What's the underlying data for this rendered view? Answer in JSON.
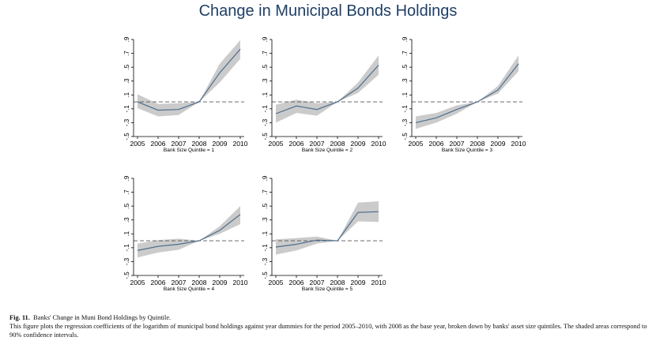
{
  "title": "Change in Municipal Bonds Holdings",
  "caption": {
    "label": "Fig. 11.",
    "title": "Banks' Change in Muni Bond Holdings by Quintile.",
    "text": "This figure plots the regression coefficients of the logarithm of municipal bond holdings against year dummies for the period 2005–2010, with 2008 as the base year, broken down by banks' asset size quintiles. The shaded areas correspond to 90% confidence intervals."
  },
  "colors": {
    "line": "#4e6e8e",
    "band": "#cbcbcb",
    "refline": "#555555"
  },
  "chart_data": [
    {
      "type": "line",
      "xlabel": "Bank Size Quintile = 1",
      "x": [
        2005,
        2006,
        2007,
        2008,
        2009,
        2010
      ],
      "ylim": [
        -0.5,
        0.9
      ],
      "yticks": [
        -0.5,
        -0.3,
        -0.1,
        0.1,
        0.3,
        0.5,
        0.7,
        0.9
      ],
      "ytick_labels": [
        "-.5",
        "-.3",
        "-.1",
        ".1",
        ".3",
        ".5",
        ".7",
        ".9"
      ],
      "reference_line": 0,
      "series": [
        {
          "values": [
            0.0,
            -0.12,
            -0.11,
            0.0,
            0.42,
            0.76
          ],
          "lower": [
            -0.09,
            -0.21,
            -0.19,
            0.0,
            0.28,
            0.62
          ],
          "upper": [
            0.11,
            -0.03,
            -0.02,
            0.0,
            0.55,
            0.89
          ]
        }
      ]
    },
    {
      "type": "line",
      "xlabel": "Bank Size Quintile = 2",
      "x": [
        2005,
        2006,
        2007,
        2008,
        2009,
        2010
      ],
      "ylim": [
        -0.5,
        0.9
      ],
      "yticks": [
        -0.5,
        -0.3,
        -0.1,
        0.1,
        0.3,
        0.5,
        0.7,
        0.9
      ],
      "ytick_labels": [
        "-.5",
        "-.3",
        "-.1",
        ".1",
        ".3",
        ".5",
        ".7",
        ".9"
      ],
      "reference_line": 0,
      "series": [
        {
          "values": [
            -0.17,
            -0.06,
            -0.11,
            0.0,
            0.2,
            0.53
          ],
          "lower": [
            -0.3,
            -0.16,
            -0.2,
            0.0,
            0.13,
            0.39
          ],
          "upper": [
            -0.04,
            0.03,
            -0.02,
            0.0,
            0.28,
            0.67
          ]
        }
      ]
    },
    {
      "type": "line",
      "xlabel": "Bank Size Quintile = 3",
      "x": [
        2005,
        2006,
        2007,
        2008,
        2009,
        2010
      ],
      "ylim": [
        -0.5,
        0.9
      ],
      "yticks": [
        -0.5,
        -0.3,
        -0.1,
        0.1,
        0.3,
        0.5,
        0.7,
        0.9
      ],
      "ytick_labels": [
        "-.5",
        "-.3",
        "-.1",
        ".1",
        ".3",
        ".5",
        ".7",
        ".9"
      ],
      "reference_line": 0,
      "series": [
        {
          "values": [
            -0.3,
            -0.23,
            -0.11,
            0.0,
            0.17,
            0.55
          ],
          "lower": [
            -0.39,
            -0.3,
            -0.17,
            0.0,
            0.12,
            0.44
          ],
          "upper": [
            -0.21,
            -0.16,
            -0.05,
            0.0,
            0.23,
            0.67
          ]
        }
      ]
    },
    {
      "type": "line",
      "xlabel": "Bank Size Quintile = 4",
      "x": [
        2005,
        2006,
        2007,
        2008,
        2009,
        2010
      ],
      "ylim": [
        -0.5,
        0.9
      ],
      "yticks": [
        -0.5,
        -0.3,
        -0.1,
        0.1,
        0.3,
        0.5,
        0.7,
        0.9
      ],
      "ytick_labels": [
        "-.5",
        "-.3",
        "-.1",
        ".1",
        ".3",
        ".5",
        ".7",
        ".9"
      ],
      "reference_line": 0,
      "series": [
        {
          "values": [
            -0.14,
            -0.08,
            -0.05,
            0.0,
            0.15,
            0.38
          ],
          "lower": [
            -0.24,
            -0.17,
            -0.13,
            0.0,
            0.1,
            0.24
          ],
          "upper": [
            -0.04,
            0.01,
            0.03,
            0.0,
            0.21,
            0.5
          ]
        }
      ]
    },
    {
      "type": "line",
      "xlabel": "Bank Size Quintile = 5",
      "x": [
        2005,
        2006,
        2007,
        2008,
        2009,
        2010
      ],
      "ylim": [
        -0.5,
        0.9
      ],
      "yticks": [
        -0.5,
        -0.3,
        -0.1,
        0.1,
        0.3,
        0.5,
        0.7,
        0.9
      ],
      "ytick_labels": [
        "-.5",
        "-.3",
        "-.1",
        ".1",
        ".3",
        ".5",
        ".7",
        ".9"
      ],
      "reference_line": 0,
      "series": [
        {
          "values": [
            -0.09,
            -0.05,
            0.01,
            0.0,
            0.41,
            0.42
          ],
          "lower": [
            -0.2,
            -0.14,
            -0.04,
            0.0,
            0.28,
            0.27
          ],
          "upper": [
            0.02,
            0.04,
            0.06,
            0.0,
            0.55,
            0.57
          ]
        }
      ]
    }
  ]
}
